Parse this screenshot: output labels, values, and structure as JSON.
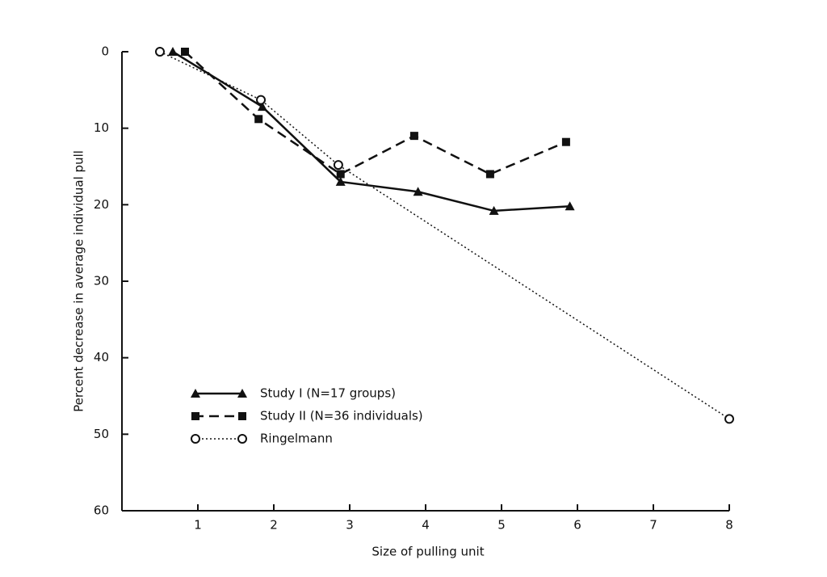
{
  "chart_data": {
    "type": "line",
    "x_label": "Size of pulling unit",
    "y_label": "Percent decrease in average individual pull",
    "xlim": [
      0,
      8
    ],
    "xticks": [
      1,
      2,
      3,
      4,
      5,
      6,
      7,
      8
    ],
    "ylim": [
      60,
      0
    ],
    "yticks": [
      0,
      10,
      20,
      30,
      40,
      50,
      60
    ],
    "legend": "lower left",
    "series": [
      {
        "name": "Study I (N=17 groups)",
        "color": "#111111",
        "line_style": "solid",
        "marker": "triangle",
        "x": [
          0.67,
          1.85,
          2.88,
          3.9,
          4.9,
          5.9
        ],
        "values": [
          0,
          7.2,
          17,
          18.3,
          20.8,
          20.2
        ]
      },
      {
        "name": "Study II (N=36 individuals)",
        "color": "#111111",
        "line_style": "dashed",
        "marker": "square",
        "x": [
          0.83,
          1.8,
          2.88,
          3.85,
          4.85,
          5.85
        ],
        "values": [
          0,
          8.8,
          16,
          11,
          16,
          11.8
        ]
      },
      {
        "name": "Ringelmann",
        "color": "#111111",
        "line_style": "dotted",
        "marker": "circle",
        "x": [
          0.5,
          1.83,
          2.85,
          8
        ],
        "values": [
          0,
          6.3,
          14.8,
          48
        ]
      }
    ]
  }
}
